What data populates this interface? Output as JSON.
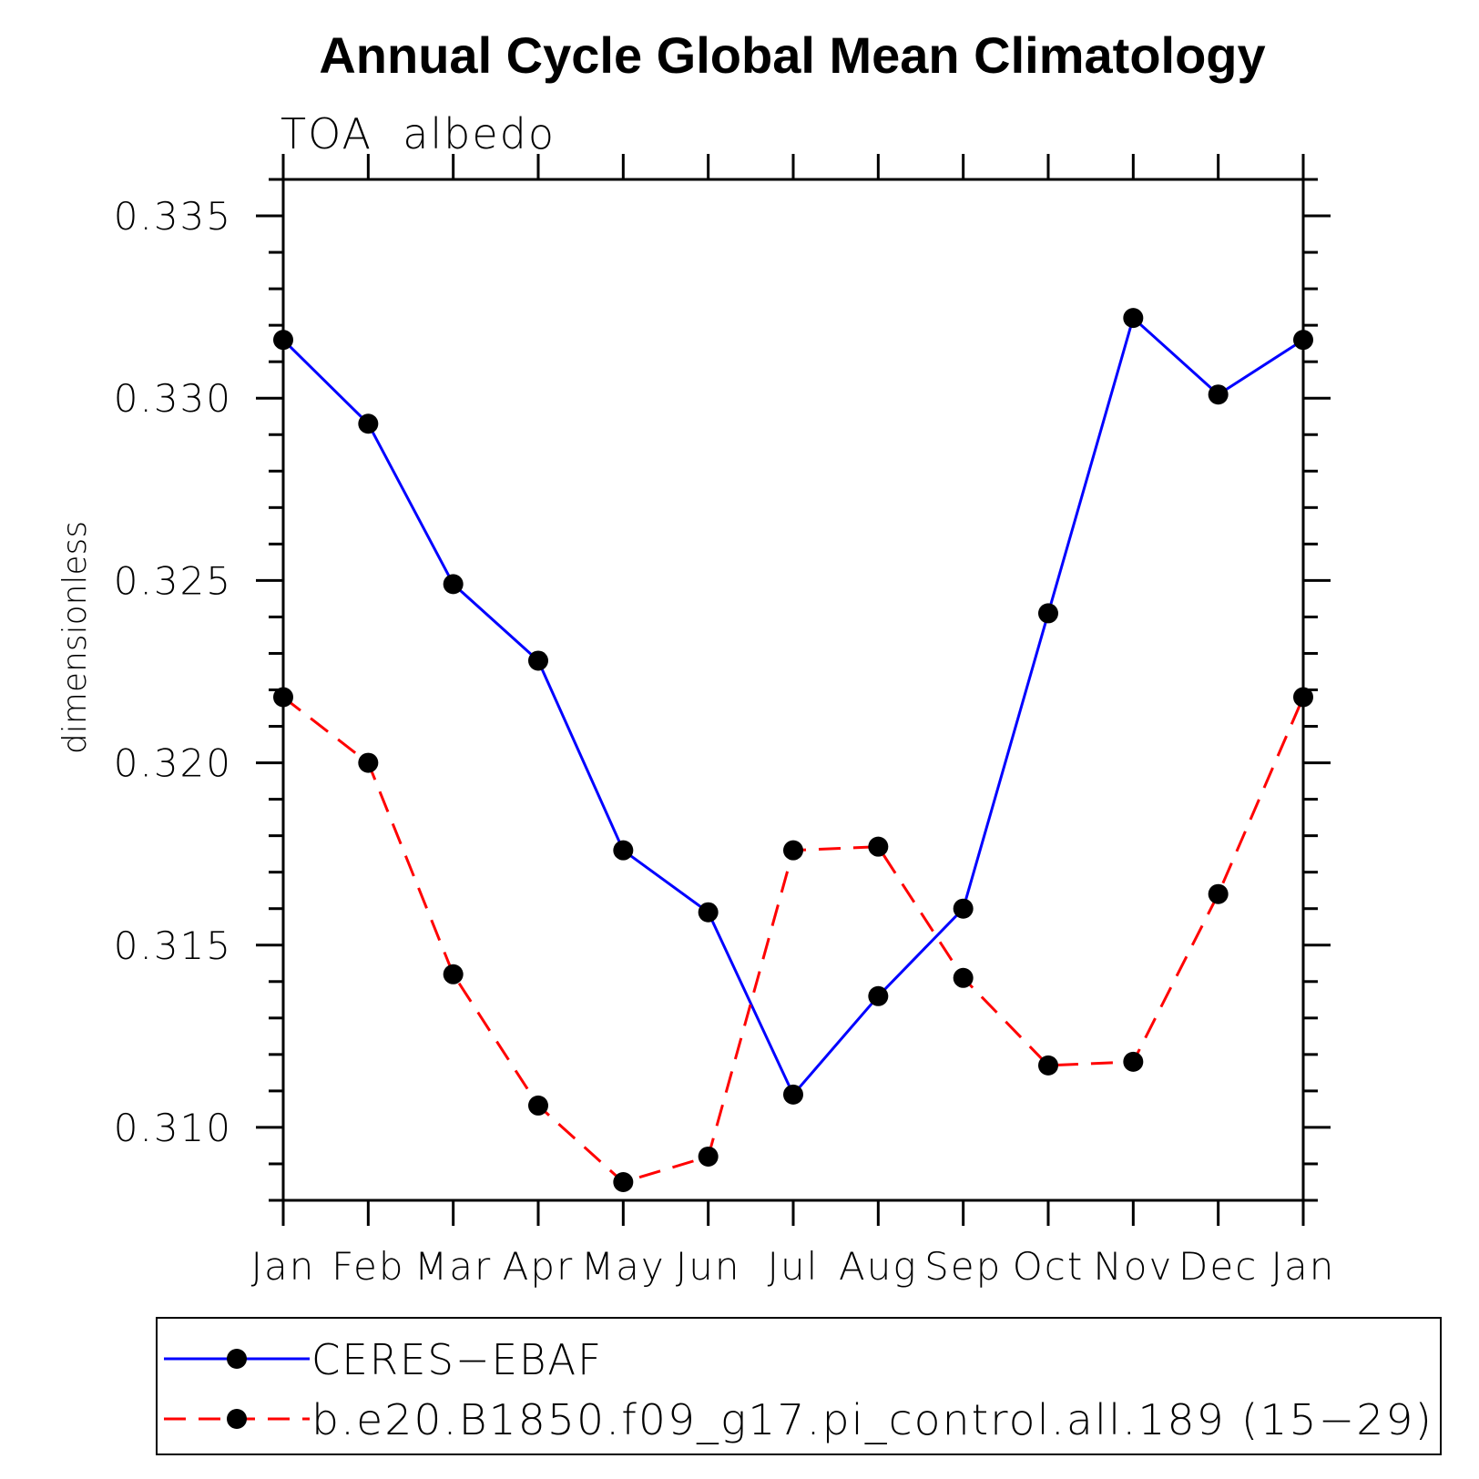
{
  "chart_data": {
    "type": "line",
    "title": "Annual Cycle Global Mean Climatology",
    "subtitle": "TOA  albedo",
    "xlabel": "",
    "ylabel": "dimensionless",
    "categories": [
      "Jan",
      "Feb",
      "Mar",
      "Apr",
      "May",
      "Jun",
      "Jul",
      "Aug",
      "Sep",
      "Oct",
      "Nov",
      "Dec",
      "Jan"
    ],
    "ylim": [
      0.308,
      0.336
    ],
    "yticks": [
      0.31,
      0.315,
      0.32,
      0.325,
      0.33,
      0.335
    ],
    "ytick_labels": [
      "0.310",
      "0.315",
      "0.320",
      "0.325",
      "0.330",
      "0.335"
    ],
    "grid": false,
    "legend_position": "bottom",
    "series": [
      {
        "name": "CERES−EBAF",
        "color": "#0000ff",
        "line_style": "solid",
        "marker": "filled-circle",
        "values": [
          0.3316,
          0.3293,
          0.3249,
          0.3228,
          0.3176,
          0.3159,
          0.3109,
          0.3136,
          0.316,
          0.3241,
          0.3322,
          0.3301,
          0.3316
        ]
      },
      {
        "name": "b.e20.B1850.f09_g17.pi_control.all.189 (15−29)",
        "color": "#ff0000",
        "line_style": "dashed",
        "marker": "filled-circle",
        "values": [
          0.3218,
          0.32,
          0.3142,
          0.3106,
          0.3085,
          0.3092,
          0.3176,
          0.3177,
          0.3141,
          0.3117,
          0.3118,
          0.3164,
          0.3218
        ]
      }
    ]
  }
}
